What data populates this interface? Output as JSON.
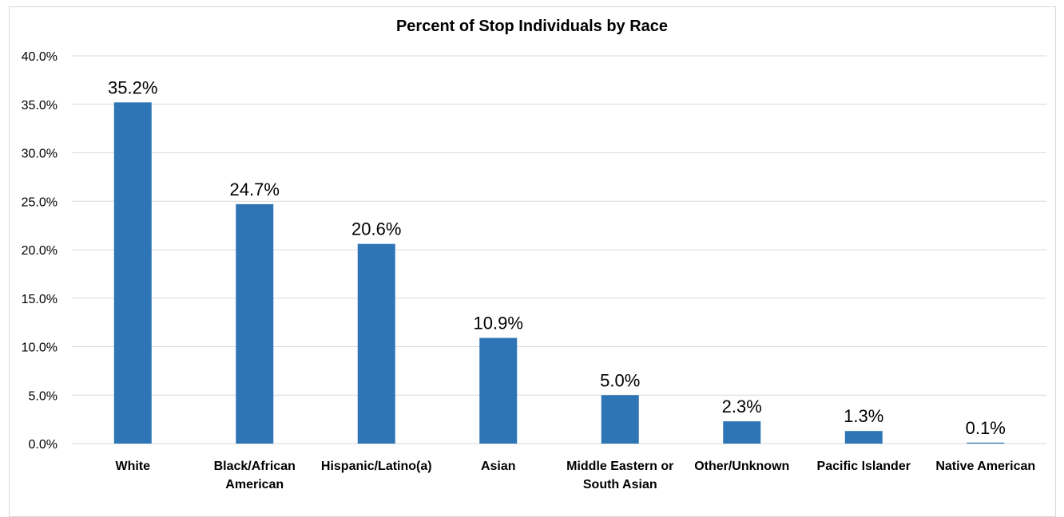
{
  "chart_data": {
    "type": "bar",
    "title": "Percent of Stop Individuals by Race",
    "xlabel": "",
    "ylabel": "",
    "categories": [
      [
        "White"
      ],
      [
        "Black/African",
        "American"
      ],
      [
        "Hispanic/Latino(a)"
      ],
      [
        "Asian"
      ],
      [
        "Middle Eastern or",
        "South Asian"
      ],
      [
        "Other/Unknown"
      ],
      [
        "Pacific Islander"
      ],
      [
        "Native American"
      ]
    ],
    "values": [
      35.2,
      24.7,
      20.6,
      10.9,
      5.0,
      2.3,
      1.3,
      0.1
    ],
    "data_labels": [
      "35.2%",
      "24.7%",
      "20.6%",
      "10.9%",
      "5.0%",
      "2.3%",
      "1.3%",
      "0.1%"
    ],
    "ylim": [
      0,
      40
    ],
    "yticks": [
      0,
      5,
      10,
      15,
      20,
      25,
      30,
      35,
      40
    ],
    "ytick_labels": [
      "0.0%",
      "5.0%",
      "10.0%",
      "15.0%",
      "20.0%",
      "25.0%",
      "30.0%",
      "35.0%",
      "40.0%"
    ],
    "grid": true,
    "legend": "none",
    "colors": {
      "bar": "#2e75b6",
      "grid": "#d9d9d9",
      "axis": "#d9d9d9"
    }
  }
}
